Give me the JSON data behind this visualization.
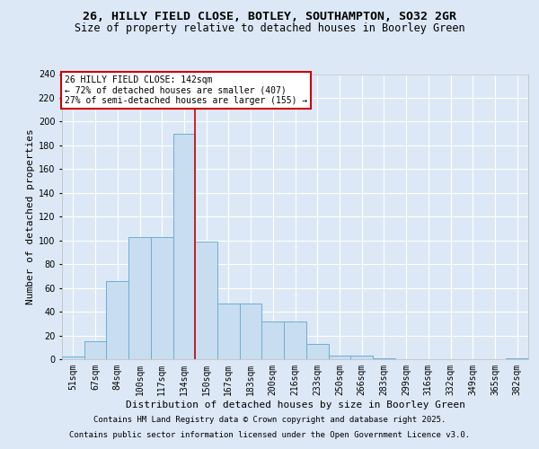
{
  "title_line1": "26, HILLY FIELD CLOSE, BOTLEY, SOUTHAMPTON, SO32 2GR",
  "title_line2": "Size of property relative to detached houses in Boorley Green",
  "xlabel": "Distribution of detached houses by size in Boorley Green",
  "ylabel": "Number of detached properties",
  "bar_categories": [
    "51sqm",
    "67sqm",
    "84sqm",
    "100sqm",
    "117sqm",
    "134sqm",
    "150sqm",
    "167sqm",
    "183sqm",
    "200sqm",
    "216sqm",
    "233sqm",
    "250sqm",
    "266sqm",
    "283sqm",
    "299sqm",
    "316sqm",
    "332sqm",
    "349sqm",
    "365sqm",
    "382sqm"
  ],
  "bar_values": [
    2,
    15,
    66,
    103,
    103,
    190,
    99,
    47,
    47,
    32,
    32,
    13,
    3,
    3,
    1,
    0,
    0,
    0,
    0,
    0,
    1
  ],
  "bar_color": "#c9ddf0",
  "bar_edge_color": "#6aaed6",
  "vline_x": 5.5,
  "vline_color": "#cc0000",
  "annotation_text": "26 HILLY FIELD CLOSE: 142sqm\n← 72% of detached houses are smaller (407)\n27% of semi-detached houses are larger (155) →",
  "annotation_box_edge_color": "#cc0000",
  "ylim": [
    0,
    240
  ],
  "yticks": [
    0,
    20,
    40,
    60,
    80,
    100,
    120,
    140,
    160,
    180,
    200,
    220,
    240
  ],
  "bg_color": "#dce8f5",
  "plot_bg_color": "#dce8f5",
  "footer_line1": "Contains HM Land Registry data © Crown copyright and database right 2025.",
  "footer_line2": "Contains public sector information licensed under the Open Government Licence v3.0.",
  "title_fontsize": 9.5,
  "subtitle_fontsize": 8.5,
  "axis_label_fontsize": 8,
  "tick_fontsize": 7,
  "annotation_fontsize": 7,
  "footer_fontsize": 6.5
}
